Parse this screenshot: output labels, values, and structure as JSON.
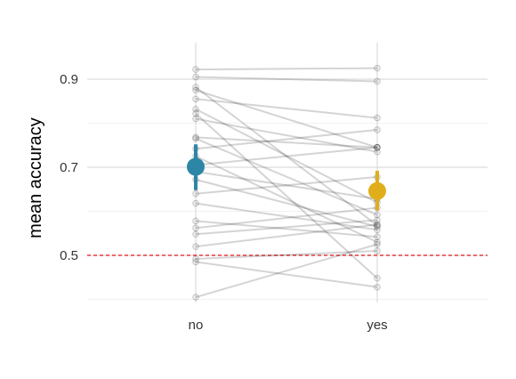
{
  "chart_data": {
    "type": "scatter",
    "title": "",
    "xlabel": "",
    "ylabel": "mean accuracy",
    "categories": [
      "no",
      "yes"
    ],
    "yticks": [
      0.5,
      0.7,
      0.9
    ],
    "ylim": [
      0.38,
      0.98
    ],
    "grid": true,
    "reference_line": {
      "y": 0.5,
      "color": "#e31a1c",
      "style": "dashed"
    },
    "subjects": [
      {
        "no": 0.922,
        "yes": 0.925
      },
      {
        "no": 0.905,
        "yes": 0.895
      },
      {
        "no": 0.882,
        "yes": 0.568
      },
      {
        "no": 0.875,
        "yes": 0.745
      },
      {
        "no": 0.855,
        "yes": 0.812
      },
      {
        "no": 0.832,
        "yes": 0.62
      },
      {
        "no": 0.822,
        "yes": 0.448
      },
      {
        "no": 0.81,
        "yes": 0.735
      },
      {
        "no": 0.768,
        "yes": 0.745
      },
      {
        "no": 0.765,
        "yes": 0.592
      },
      {
        "no": 0.742,
        "yes": 0.785
      },
      {
        "no": 0.725,
        "yes": 0.53
      },
      {
        "no": 0.705,
        "yes": 0.745
      },
      {
        "no": 0.69,
        "yes": 0.628
      },
      {
        "no": 0.672,
        "yes": 0.565
      },
      {
        "no": 0.64,
        "yes": 0.678
      },
      {
        "no": 0.618,
        "yes": 0.558
      },
      {
        "no": 0.578,
        "yes": 0.542
      },
      {
        "no": 0.562,
        "yes": 0.608
      },
      {
        "no": 0.548,
        "yes": 0.58
      },
      {
        "no": 0.52,
        "yes": 0.57
      },
      {
        "no": 0.492,
        "yes": 0.51
      },
      {
        "no": 0.485,
        "yes": 0.428
      },
      {
        "no": 0.405,
        "yes": 0.525
      }
    ],
    "summary": [
      {
        "category": "no",
        "mean": 0.701,
        "lower": 0.648,
        "upper": 0.752,
        "color": "#2e86a6"
      },
      {
        "category": "yes",
        "mean": 0.646,
        "lower": 0.602,
        "upper": 0.692,
        "color": "#e0ae1b"
      }
    ]
  }
}
